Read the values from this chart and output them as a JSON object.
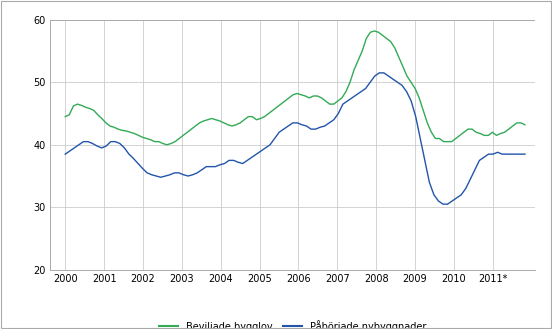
{
  "title": "",
  "ylabel": "",
  "xlabel": "",
  "ylim": [
    20,
    60
  ],
  "yticks": [
    20,
    30,
    40,
    50,
    60
  ],
  "background_color": "#ffffff",
  "grid_color": "#cccccc",
  "line1_color": "#33aa55",
  "line2_color": "#2255aa",
  "legend1": "Beviljade bygglov",
  "legend2": "Påbörjade nybyggnader",
  "xtick_labels": [
    "2000",
    "2001",
    "2002",
    "2003",
    "2004",
    "2005",
    "2006",
    "2007",
    "2008",
    "2009",
    "2010",
    "2011*"
  ],
  "beviljade": [
    44.5,
    44.8,
    46.2,
    46.5,
    46.3,
    46.0,
    45.8,
    45.5,
    44.8,
    44.2,
    43.5,
    43.0,
    42.8,
    42.5,
    42.3,
    42.2,
    42.0,
    41.8,
    41.5,
    41.2,
    41.0,
    40.8,
    40.5,
    40.5,
    40.2,
    40.0,
    40.2,
    40.5,
    41.0,
    41.5,
    42.0,
    42.5,
    43.0,
    43.5,
    43.8,
    44.0,
    44.2,
    44.0,
    43.8,
    43.5,
    43.2,
    43.0,
    43.2,
    43.5,
    44.0,
    44.5,
    44.5,
    44.0,
    44.2,
    44.5,
    45.0,
    45.5,
    46.0,
    46.5,
    47.0,
    47.5,
    48.0,
    48.2,
    48.0,
    47.8,
    47.5,
    47.8,
    47.8,
    47.5,
    47.0,
    46.5,
    46.5,
    47.0,
    47.5,
    48.5,
    50.0,
    52.0,
    53.5,
    55.0,
    57.0,
    58.0,
    58.2,
    58.0,
    57.5,
    57.0,
    56.5,
    55.5,
    54.0,
    52.5,
    51.0,
    50.0,
    49.0,
    47.5,
    45.5,
    43.5,
    42.0,
    41.0,
    41.0,
    40.5,
    40.5,
    40.5,
    41.0,
    41.5,
    42.0,
    42.5,
    42.5,
    42.0,
    41.8,
    41.5,
    41.5,
    42.0,
    41.5,
    41.8,
    42.0,
    42.5,
    43.0,
    43.5,
    43.5,
    43.2
  ],
  "paaborjade": [
    38.5,
    39.0,
    39.5,
    40.0,
    40.5,
    40.5,
    40.2,
    39.8,
    39.5,
    39.8,
    40.5,
    40.5,
    40.2,
    39.5,
    38.5,
    37.8,
    37.0,
    36.2,
    35.5,
    35.2,
    35.0,
    34.8,
    35.0,
    35.2,
    35.5,
    35.5,
    35.2,
    35.0,
    35.2,
    35.5,
    36.0,
    36.5,
    36.5,
    36.5,
    36.8,
    37.0,
    37.5,
    37.5,
    37.2,
    37.0,
    37.5,
    38.0,
    38.5,
    39.0,
    39.5,
    40.0,
    41.0,
    42.0,
    42.5,
    43.0,
    43.5,
    43.5,
    43.2,
    43.0,
    42.5,
    42.5,
    42.8,
    43.0,
    43.5,
    44.0,
    45.0,
    46.5,
    47.0,
    47.5,
    48.0,
    48.5,
    49.0,
    50.0,
    51.0,
    51.5,
    51.5,
    51.0,
    50.5,
    50.0,
    49.5,
    48.5,
    47.0,
    44.5,
    41.0,
    37.5,
    34.0,
    32.0,
    31.0,
    30.5,
    30.5,
    31.0,
    31.5,
    32.0,
    33.0,
    34.5,
    36.0,
    37.5,
    38.0,
    38.5,
    38.5,
    38.8,
    38.5,
    38.5,
    38.5,
    38.5,
    38.5,
    38.5
  ]
}
